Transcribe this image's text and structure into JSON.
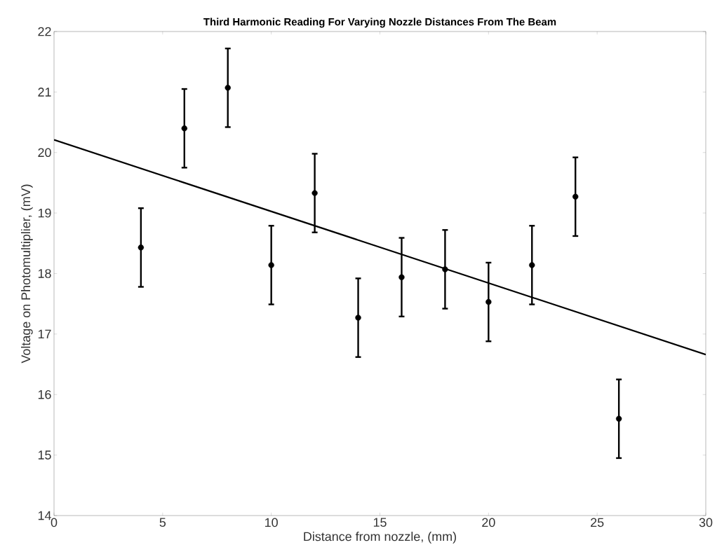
{
  "chart_data": {
    "type": "scatter",
    "title": "Third Harmonic Reading For Varying Nozzle Distances From The Beam",
    "xlabel": "Distance from nozzle, (mm)",
    "ylabel": "Voltage on Photomultiplier, (mV)",
    "xlim": [
      0,
      30
    ],
    "ylim": [
      14,
      22
    ],
    "xticks": [
      0,
      5,
      10,
      15,
      20,
      25,
      30
    ],
    "yticks": [
      14,
      15,
      16,
      17,
      18,
      19,
      20,
      21,
      22
    ],
    "grid": false,
    "marker": "circle",
    "series": [
      {
        "color": "#000000",
        "x": [
          4,
          6,
          8,
          10,
          12,
          14,
          16,
          18,
          20,
          22,
          24,
          26
        ],
        "values": [
          18.43,
          20.4,
          21.07,
          18.14,
          19.33,
          17.27,
          17.94,
          18.07,
          17.53,
          18.14,
          19.27,
          15.6
        ],
        "errors": [
          0.65,
          0.65,
          0.65,
          0.65,
          0.65,
          0.65,
          0.65,
          0.65,
          0.65,
          0.65,
          0.65,
          0.65
        ]
      },
      {
        "type": "line",
        "color": "#000000",
        "marker": "none",
        "line_style": "solid",
        "x": [
          0,
          30
        ],
        "values": [
          20.21,
          16.66
        ]
      }
    ]
  }
}
